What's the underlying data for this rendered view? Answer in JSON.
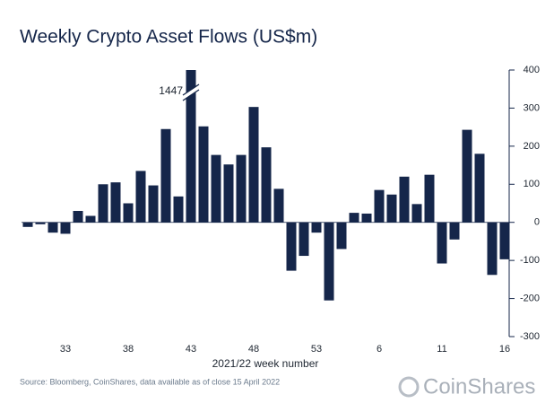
{
  "chart_data": {
    "type": "bar",
    "title": "Weekly Crypto Asset Flows (US$m)",
    "x_label": "2021/22 week number",
    "source": "Source: Bloomberg, CoinShares, data available as of close 15 April 2022",
    "logo": "CoinShares",
    "color": "#15264a",
    "categories": [
      null,
      null,
      null,
      "33",
      null,
      null,
      null,
      null,
      "38",
      null,
      null,
      null,
      null,
      "43",
      null,
      null,
      null,
      null,
      "48",
      null,
      null,
      null,
      null,
      "53",
      null,
      null,
      null,
      null,
      "6",
      null,
      null,
      null,
      null,
      "11",
      null,
      null,
      null,
      null,
      "16"
    ],
    "values": [
      -12,
      -5,
      -27,
      -30,
      30,
      17,
      100,
      105,
      50,
      135,
      97,
      245,
      68,
      1447,
      252,
      177,
      152,
      177,
      303,
      197,
      88,
      -127,
      -88,
      -27,
      -205,
      -70,
      25,
      23,
      85,
      73,
      120,
      48,
      125,
      -108,
      -45,
      243,
      180,
      -138,
      -97
    ],
    "ylim": [
      -300,
      400
    ],
    "yticks": [
      -300,
      -200,
      -100,
      0,
      100,
      200,
      300,
      400
    ],
    "y_axis_side": "right"
  }
}
